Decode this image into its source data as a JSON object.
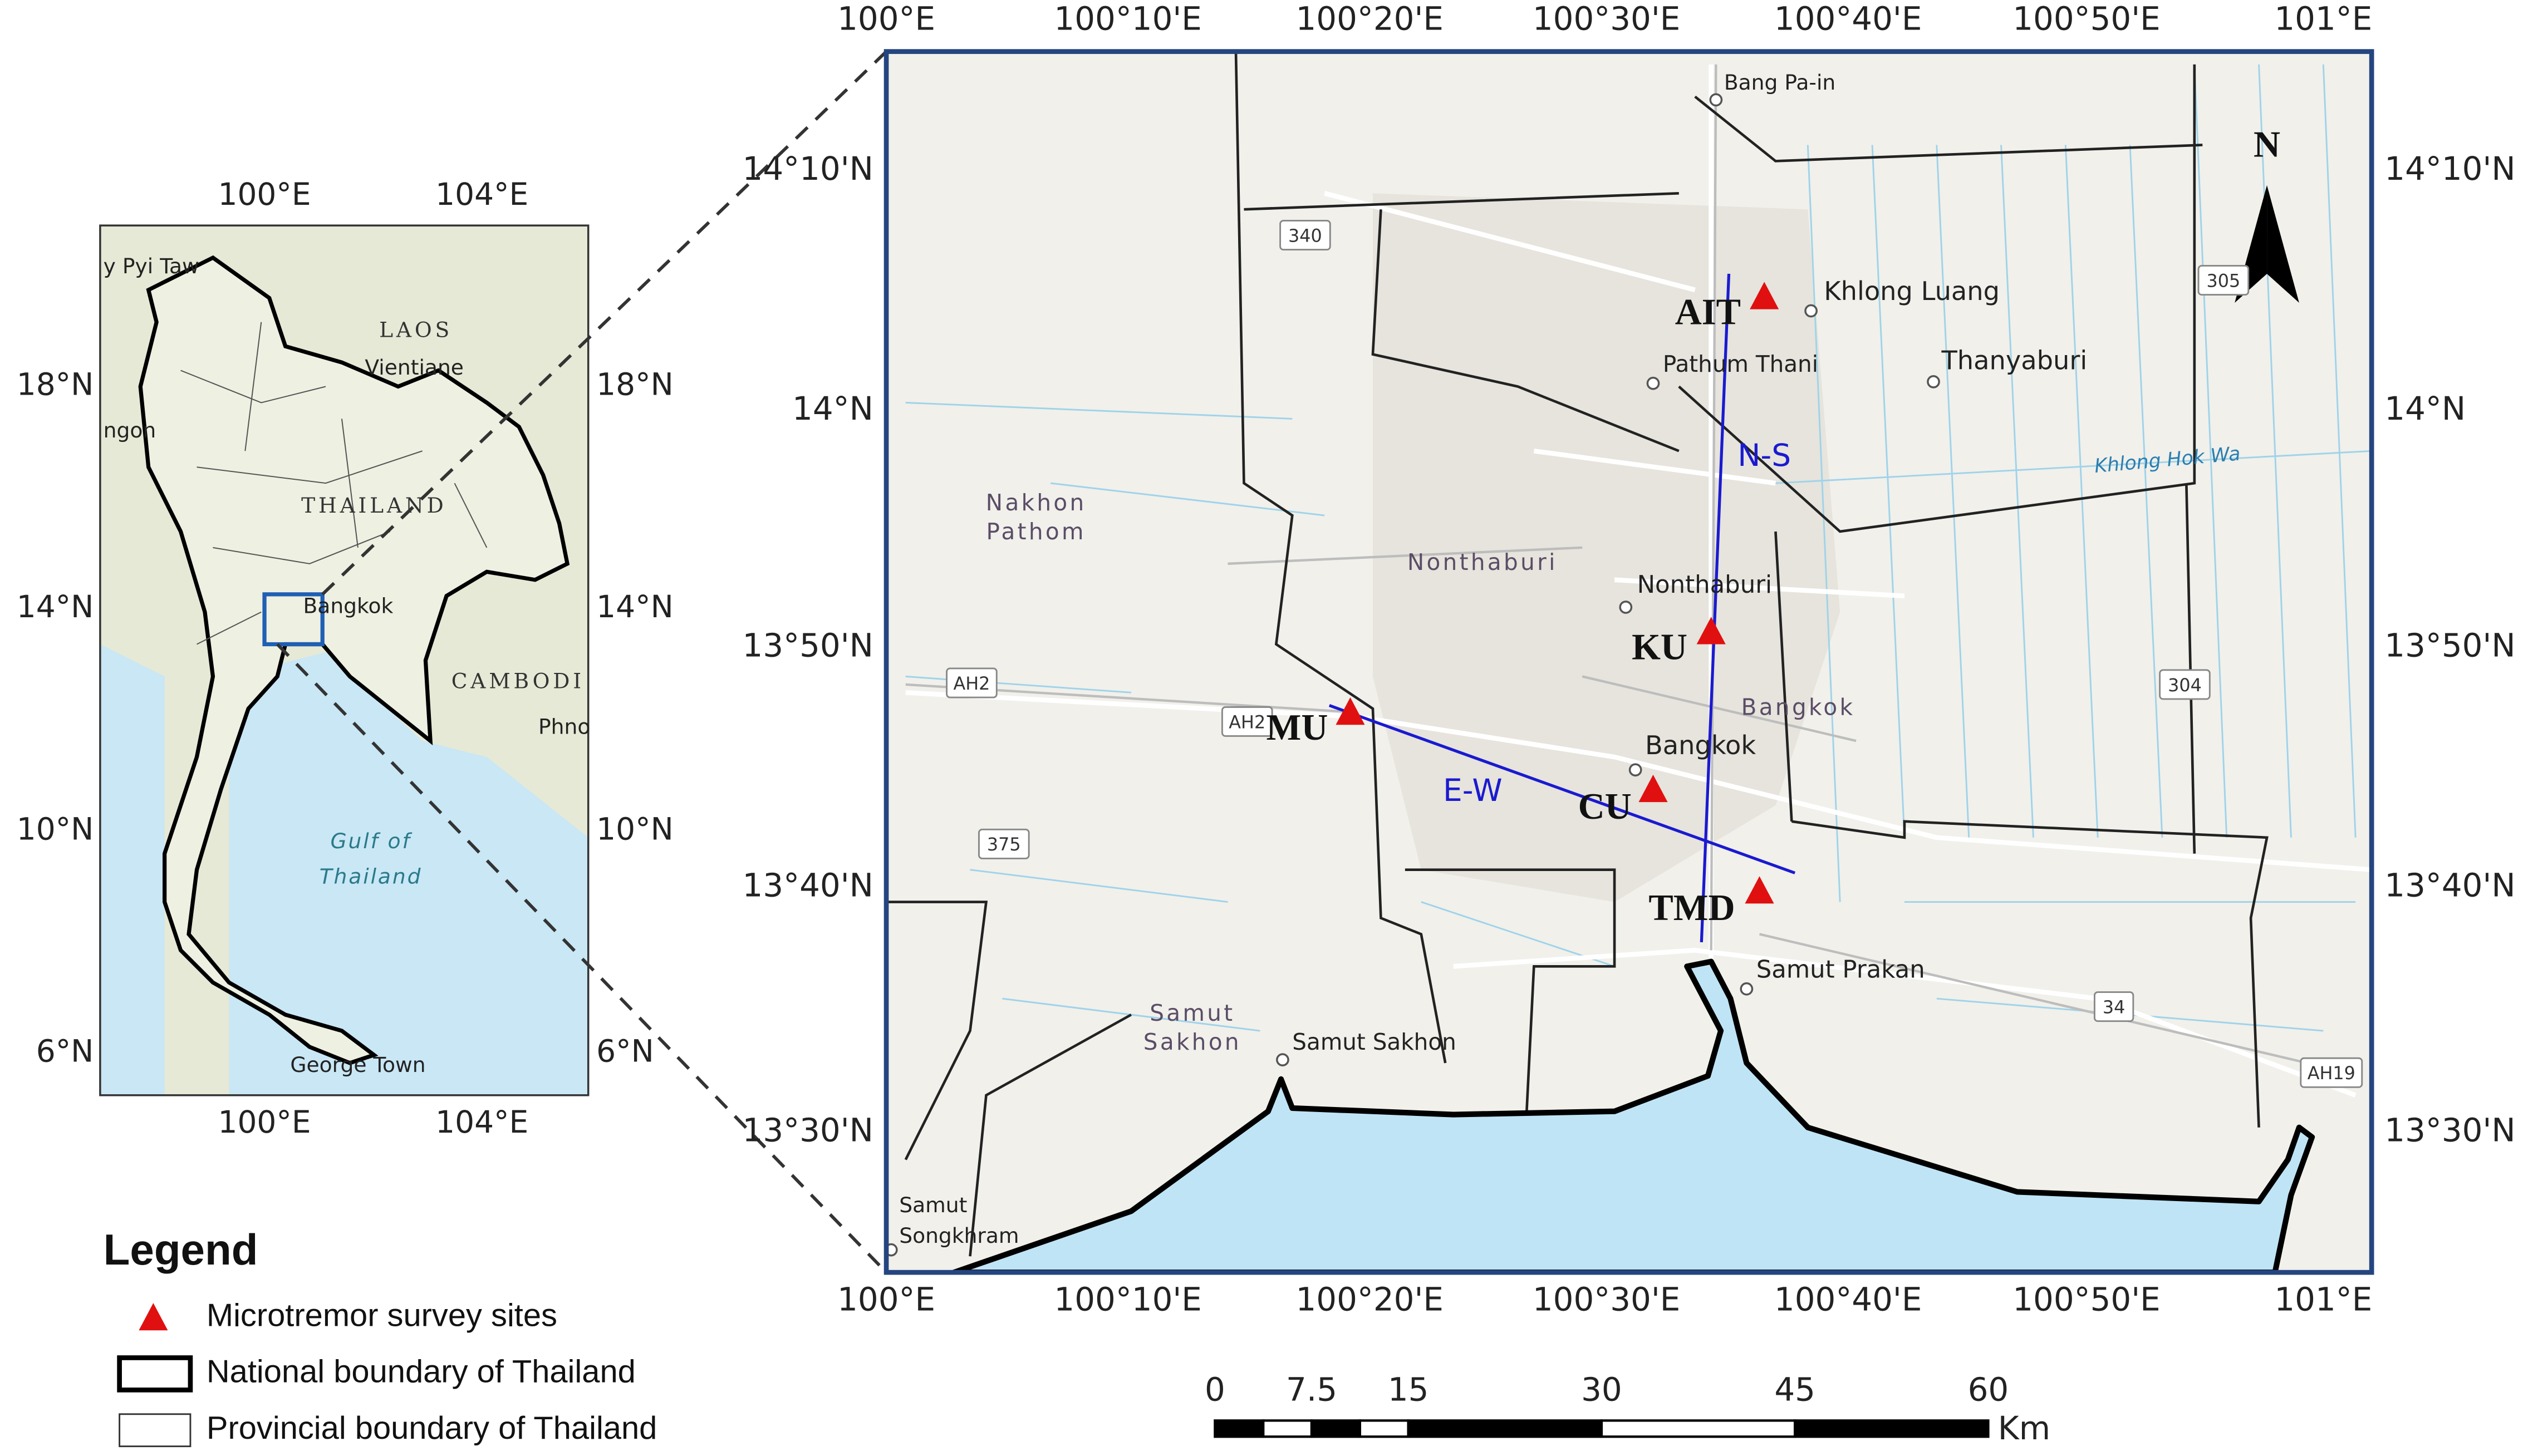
{
  "inset_map": {
    "lon_labels": [
      "100°E",
      "104°E"
    ],
    "lat_labels": [
      "18°N",
      "14°N",
      "10°N",
      "6°N"
    ],
    "places": [
      "y Pyi Taw",
      "LAOS",
      "Vientiane",
      "ngon",
      "THAILAND",
      "Bangkok",
      "CAMBODI",
      "Phno",
      "Gulf of",
      "Thailand",
      "George Town"
    ]
  },
  "main_map": {
    "lon_labels": [
      "100°E",
      "100°10'E",
      "100°20'E",
      "100°30'E",
      "100°40'E",
      "100°50'E",
      "101°E"
    ],
    "lat_labels": [
      "14°10'N",
      "14°N",
      "13°50'N",
      "13°40'N",
      "13°30'N"
    ],
    "north_label": "N",
    "sites": [
      "AIT",
      "KU",
      "MU",
      "CU",
      "TMD"
    ],
    "profiles": [
      "N-S",
      "E-W"
    ],
    "places": [
      "Bang Pa-in",
      "Khlong Luang",
      "Pathum Thani",
      "Thanyaburi",
      "Khlong Hok Wa",
      "Nakhon",
      "Pathom",
      "Nonthaburi",
      "Nonthaburi",
      "Bangkok",
      "Bangkok",
      "Samut Prakan",
      "Samut",
      "Sakhon",
      "Samut Sakhon",
      "Samut",
      "Songkhram"
    ],
    "road_shields": [
      "340",
      "305",
      "AH2",
      "AH2",
      "304",
      "375",
      "34",
      "AH19"
    ]
  },
  "legend": {
    "title": "Legend",
    "items": [
      "Microtremor survey sites",
      "National boundary of Thailand",
      "Provincial boundary of Thailand"
    ]
  },
  "scale_bar": {
    "labels": [
      0,
      7.5,
      15,
      30,
      45,
      60
    ],
    "unit": "Km"
  }
}
